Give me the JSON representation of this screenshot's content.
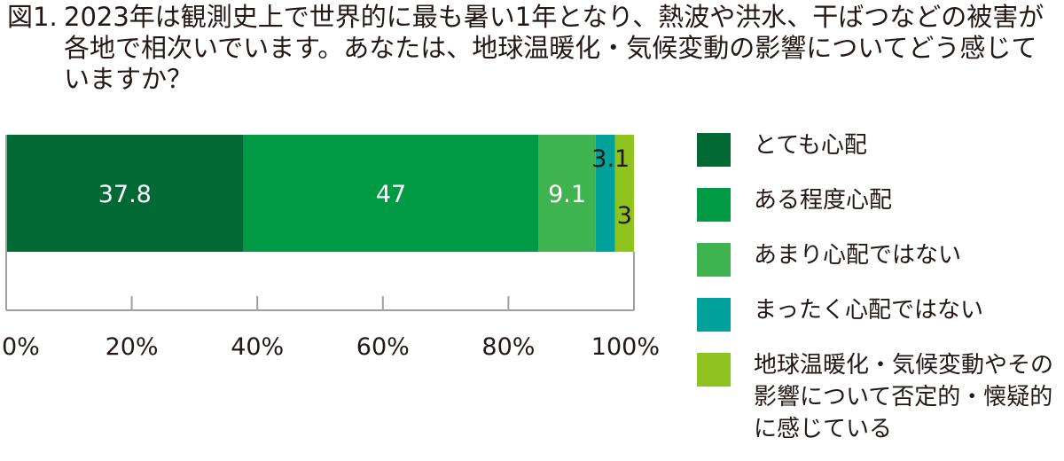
{
  "title": {
    "number": "図1.",
    "text": "2023年は観測史上で世界的に最も暑い1年となり、熱波や洪水、干ばつなどの被害が各地で相次いでいます。あなたは、地球温暖化・気候変動の影響についてどう感じていますか？"
  },
  "chart_data": {
    "type": "bar",
    "orientation": "horizontal",
    "stacked": true,
    "xlim": [
      0,
      100
    ],
    "x_ticks": [
      "0%",
      "20%",
      "40%",
      "60%",
      "80%",
      "100%"
    ],
    "x_tick_values": [
      0,
      20,
      40,
      60,
      80,
      100
    ],
    "categories": [
      ""
    ],
    "series": [
      {
        "name": "とても心配",
        "values": [
          37.8
        ],
        "label": "37.8",
        "color": "#006934"
      },
      {
        "name": "ある程度心配",
        "values": [
          47
        ],
        "label": "47",
        "color": "#009944"
      },
      {
        "name": "あまり心配ではない",
        "values": [
          9.1
        ],
        "label": "9.1",
        "color": "#3eb34f"
      },
      {
        "name": "まったく心配ではない",
        "values": [
          3.1
        ],
        "label": "3.1",
        "color": "#00a19a"
      },
      {
        "name": "地球温暖化・気候変動やその影響について否定的・懐疑的に感じている",
        "values": [
          3
        ],
        "label": "3",
        "color": "#8fc31f"
      }
    ],
    "legend_position": "right"
  },
  "legend": [
    {
      "label": "とても心配",
      "color": "#006934"
    },
    {
      "label": "ある程度心配",
      "color": "#009944"
    },
    {
      "label": "あまり心配ではない",
      "color": "#3eb34f"
    },
    {
      "label": "まったく心配ではない",
      "color": "#00a19a"
    },
    {
      "label": "地球温暖化・気候変動やその影響について否定的・懐疑的に感じている",
      "color": "#8fc31f"
    }
  ]
}
